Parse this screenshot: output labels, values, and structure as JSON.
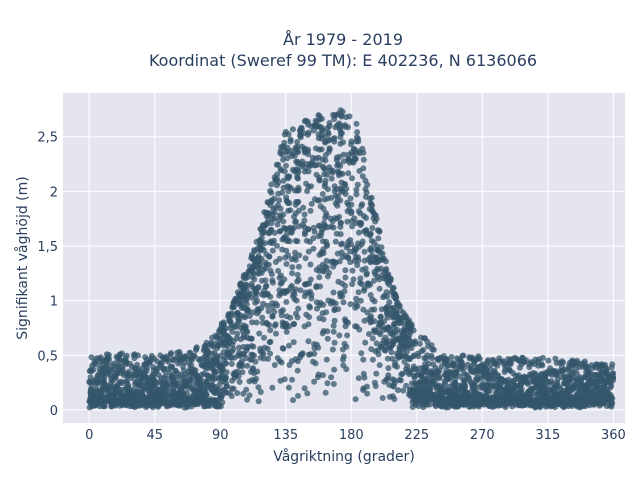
{
  "chart_data": {
    "type": "scatter",
    "title_line1": "År 1979 - 2019",
    "title_line2": "Koordinat (Sweref 99 TM): E 402236, N 6136066",
    "xlabel": "Vågriktning (grader)",
    "ylabel": "Signifikant våghöjd (m)",
    "xlim": [
      -18,
      368
    ],
    "ylim": [
      -0.12,
      2.9
    ],
    "x_ticks": [
      0,
      45,
      90,
      135,
      180,
      225,
      270,
      315,
      360
    ],
    "x_tick_labels": [
      "0",
      "45",
      "90",
      "135",
      "180",
      "225",
      "270",
      "315",
      "360"
    ],
    "y_ticks": [
      0,
      0.5,
      1,
      1.5,
      2,
      2.5
    ],
    "y_tick_labels": [
      "0",
      "0,5",
      "1",
      "1,5",
      "2",
      "2,5"
    ],
    "marker_color": "#34566b",
    "plot_bg": "#e5e5ef",
    "grid": true,
    "envelope": {
      "direction": [
        0,
        20,
        45,
        70,
        85,
        95,
        105,
        115,
        125,
        135,
        145,
        155,
        165,
        175,
        185,
        195,
        205,
        215,
        225,
        235,
        245,
        260,
        280,
        310,
        340,
        360
      ],
      "max_height": [
        0.5,
        0.52,
        0.5,
        0.55,
        0.7,
        0.85,
        1.2,
        1.55,
        2.1,
        2.55,
        2.62,
        2.7,
        2.75,
        2.75,
        2.6,
        1.9,
        1.3,
        0.9,
        0.75,
        0.6,
        0.5,
        0.5,
        0.48,
        0.48,
        0.45,
        0.42
      ]
    }
  }
}
